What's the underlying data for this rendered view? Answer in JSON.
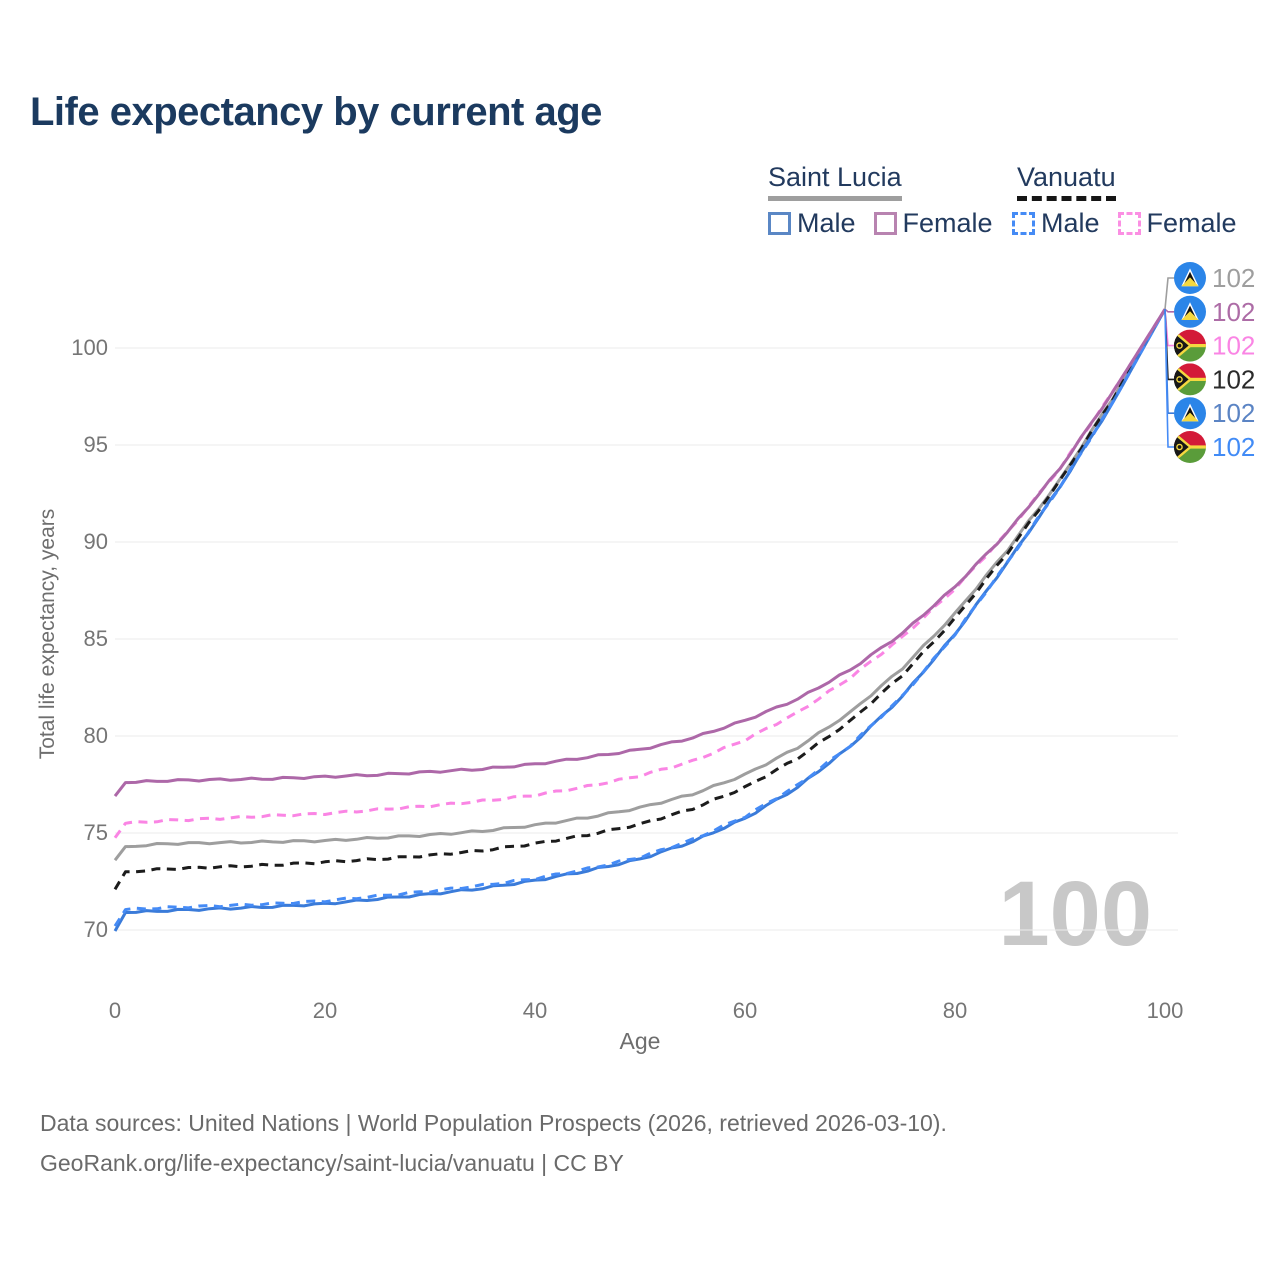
{
  "title": "Life expectancy by current age",
  "legend": {
    "groups": [
      {
        "name": "Saint Lucia",
        "line_style": "solid",
        "underline_color": "#9e9e9e",
        "items": [
          {
            "label": "Male",
            "swatch_color": "#5a87c5",
            "dashed": false
          },
          {
            "label": "Female",
            "swatch_color": "#b883b0",
            "dashed": false
          }
        ]
      },
      {
        "name": "Vanuatu",
        "line_style": "dashed",
        "underline_color": "#161616",
        "items": [
          {
            "label": "Male",
            "swatch_color": "#458bf5",
            "dashed": true
          },
          {
            "label": "Female",
            "swatch_color": "#fb8fe3",
            "dashed": true
          }
        ]
      }
    ]
  },
  "chart_data": {
    "type": "line",
    "title": "Life expectancy by current age",
    "xlabel": "Age",
    "ylabel": "Total life expectancy, years",
    "x_ticks": [
      0,
      20,
      40,
      60,
      80,
      100
    ],
    "y_ticks": [
      70,
      75,
      80,
      85,
      90,
      95,
      100
    ],
    "xlim": [
      0,
      100
    ],
    "ylim": [
      68,
      103
    ],
    "grid": "horizontal",
    "watermark": "100",
    "ages": [
      0,
      1,
      5,
      10,
      15,
      20,
      25,
      30,
      35,
      40,
      45,
      50,
      55,
      60,
      65,
      70,
      75,
      80,
      85,
      90,
      95,
      100
    ],
    "series": [
      {
        "name": "Saint Lucia Total",
        "country": "Saint Lucia",
        "sex": "Total",
        "flag": "saint-lucia",
        "color": "#9e9e9e",
        "dash": "solid",
        "end_label": "102",
        "label_color": "#9e9e9e",
        "values": [
          73.6,
          74.3,
          74.45,
          74.5,
          74.55,
          74.6,
          74.75,
          74.9,
          75.1,
          75.4,
          75.8,
          76.3,
          77.0,
          78.0,
          79.4,
          81.2,
          83.5,
          86.3,
          89.6,
          93.2,
          97.4,
          102
        ]
      },
      {
        "name": "Saint Lucia Female",
        "country": "Saint Lucia",
        "sex": "Female",
        "flag": "saint-lucia",
        "color": "#ad68a8",
        "dash": "solid",
        "end_label": "102",
        "label_color": "#ad6ca6",
        "values": [
          76.9,
          77.6,
          77.7,
          77.75,
          77.8,
          77.9,
          78.0,
          78.15,
          78.3,
          78.55,
          78.9,
          79.3,
          79.9,
          80.8,
          81.9,
          83.4,
          85.3,
          87.7,
          90.5,
          93.8,
          97.7,
          102
        ]
      },
      {
        "name": "Vanuatu Female",
        "country": "Vanuatu",
        "sex": "Female",
        "flag": "vanuatu",
        "color": "#fa85e4",
        "dash": "dashed",
        "end_label": "102",
        "label_color": "#fa85e4",
        "values": [
          74.75,
          75.5,
          75.65,
          75.75,
          75.9,
          76.0,
          76.2,
          76.4,
          76.65,
          76.95,
          77.4,
          77.95,
          78.7,
          79.8,
          81.2,
          83.0,
          85.1,
          87.6,
          90.5,
          93.8,
          97.7,
          102
        ]
      },
      {
        "name": "Vanuatu Total",
        "country": "Vanuatu",
        "sex": "Total",
        "flag": "vanuatu",
        "color": "#1c1c1c",
        "dash": "dashed",
        "end_label": "102",
        "label_color": "#2b2b2b",
        "values": [
          72.1,
          73.0,
          73.15,
          73.25,
          73.35,
          73.5,
          73.65,
          73.85,
          74.1,
          74.45,
          74.9,
          75.45,
          76.25,
          77.35,
          78.85,
          80.75,
          83.15,
          86.05,
          89.45,
          93.15,
          97.35,
          102
        ]
      },
      {
        "name": "Saint Lucia Male",
        "country": "Saint Lucia",
        "sex": "Male",
        "flag": "saint-lucia",
        "color": "#3a7bd9",
        "dash": "solid",
        "end_label": "102",
        "label_color": "#5b84c4",
        "values": [
          69.95,
          70.9,
          71.0,
          71.1,
          71.2,
          71.35,
          71.6,
          71.85,
          72.15,
          72.55,
          73.05,
          73.65,
          74.55,
          75.75,
          77.35,
          79.45,
          82.05,
          85.25,
          88.95,
          92.85,
          97.15,
          102
        ]
      },
      {
        "name": "Vanuatu Male",
        "country": "Vanuatu",
        "sex": "Male",
        "flag": "vanuatu",
        "color": "#458bf6",
        "dash": "dashed",
        "end_label": "102",
        "label_color": "#418bf6",
        "values": [
          70.2,
          71.05,
          71.15,
          71.25,
          71.35,
          71.5,
          71.75,
          72.0,
          72.3,
          72.65,
          73.15,
          73.75,
          74.65,
          75.85,
          77.45,
          79.5,
          82.05,
          85.25,
          88.95,
          92.85,
          97.15,
          102
        ]
      }
    ]
  },
  "footer": {
    "line1": "Data sources: United Nations | World Population Prospects (2026, retrieved 2026-03-10).",
    "line2": "GeoRank.org/life-expectancy/saint-lucia/vanuatu | CC BY"
  }
}
